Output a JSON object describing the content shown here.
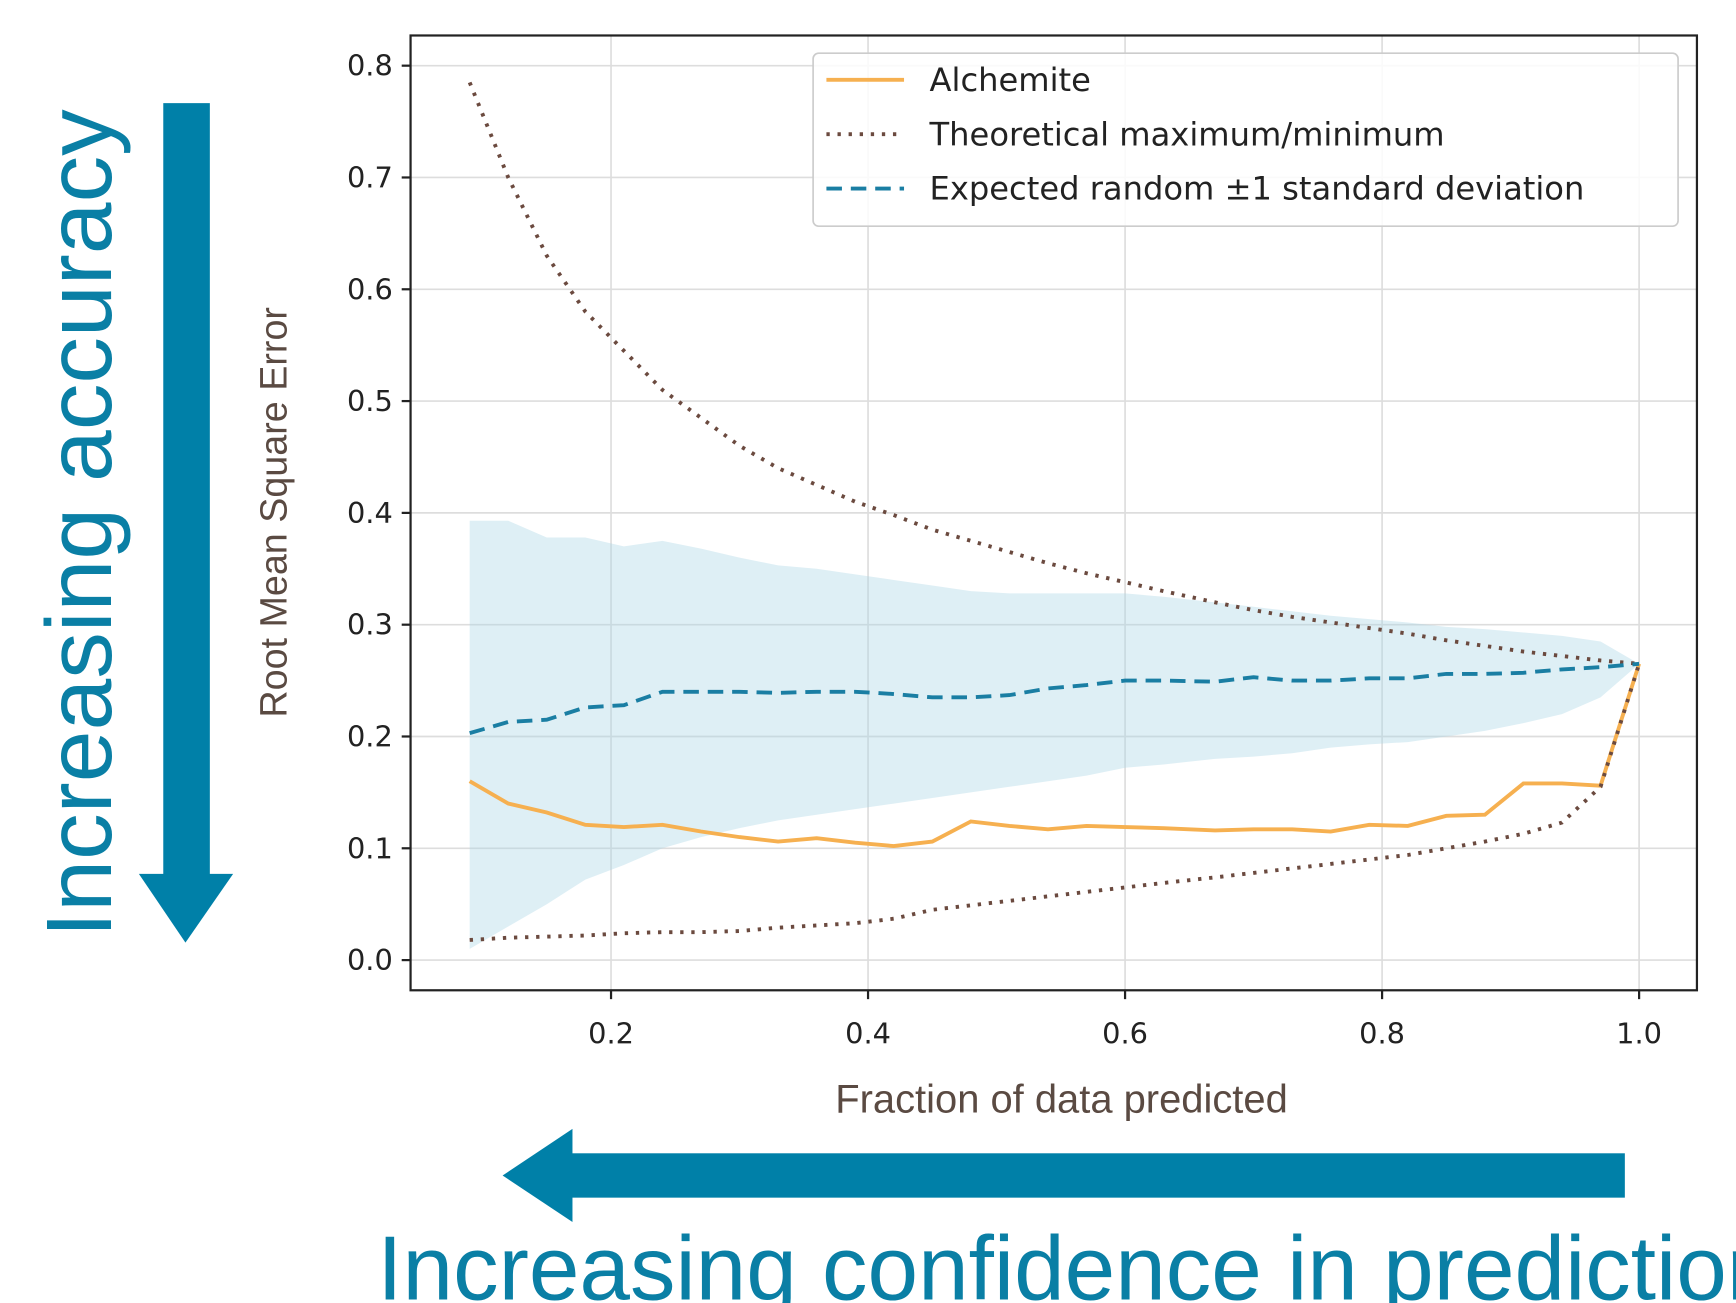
{
  "chart_data": {
    "type": "line",
    "xlabel": "Fraction of data predicted",
    "ylabel": "Root Mean Square Error",
    "annotations": [
      "Increasing accuracy",
      "Increasing confidence in prediction"
    ],
    "xlim": [
      0.044,
      1.045
    ],
    "ylim": [
      -0.027,
      0.827
    ],
    "xticks": [
      0.2,
      0.4,
      0.6,
      0.8,
      {
        "value": 1,
        "label": "1.0"
      }
    ],
    "yticks": [
      {
        "value": 0,
        "label": "0.0"
      },
      0.1,
      0.2,
      0.3,
      0.4,
      0.5,
      0.6,
      0.7,
      0.8
    ],
    "grid": true,
    "legend": "upper right",
    "x": [
      0.09,
      0.12,
      0.15,
      0.18,
      0.21,
      0.24,
      0.27,
      0.3,
      0.33,
      0.36,
      0.39,
      0.42,
      0.45,
      0.48,
      0.51,
      0.54,
      0.57,
      0.6,
      0.63,
      0.67,
      0.7,
      0.73,
      0.76,
      0.79,
      0.82,
      0.85,
      0.88,
      0.91,
      0.94,
      0.97,
      1.0
    ],
    "series": [
      {
        "name": "Alchemite",
        "color": "#f6b050",
        "linestyle": "solid",
        "values": [
          0.16,
          0.14,
          0.132,
          0.121,
          0.119,
          0.121,
          0.115,
          0.11,
          0.106,
          0.109,
          0.105,
          0.102,
          0.106,
          0.124,
          0.12,
          0.117,
          0.12,
          0.119,
          0.118,
          0.116,
          0.117,
          0.117,
          0.115,
          0.121,
          0.12,
          0.129,
          0.13,
          0.158,
          0.158,
          0.156,
          0.265
        ]
      },
      {
        "name": "Theoretical maximum/minimum",
        "color": "#6b4a3f",
        "linestyle": "dotted",
        "values": [
          0.785,
          0.7,
          0.63,
          0.58,
          0.545,
          0.51,
          0.485,
          0.46,
          0.44,
          0.425,
          0.41,
          0.398,
          0.385,
          0.375,
          0.365,
          0.355,
          0.346,
          0.338,
          0.33,
          0.32,
          0.313,
          0.307,
          0.302,
          0.297,
          0.292,
          0.286,
          0.281,
          0.276,
          0.272,
          0.268,
          0.265
        ],
        "values_min": [
          0.018,
          0.02,
          0.021,
          0.022,
          0.024,
          0.025,
          0.025,
          0.026,
          0.029,
          0.031,
          0.033,
          0.037,
          0.045,
          0.049,
          0.053,
          0.057,
          0.061,
          0.065,
          0.069,
          0.074,
          0.078,
          0.082,
          0.086,
          0.09,
          0.094,
          0.1,
          0.106,
          0.113,
          0.123,
          0.155,
          0.265
        ]
      },
      {
        "name": "Expected random ±1 standard deviation",
        "color": "#1a7ea3",
        "linestyle": "dashed",
        "band_color": "#add8e6",
        "values": [
          0.203,
          0.213,
          0.215,
          0.226,
          0.228,
          0.24,
          0.24,
          0.24,
          0.239,
          0.24,
          0.24,
          0.238,
          0.235,
          0.235,
          0.237,
          0.243,
          0.246,
          0.25,
          0.25,
          0.249,
          0.253,
          0.25,
          0.25,
          0.252,
          0.252,
          0.256,
          0.256,
          0.257,
          0.26,
          0.262,
          0.265
        ],
        "upper": [
          0.393,
          0.393,
          0.378,
          0.378,
          0.37,
          0.375,
          0.368,
          0.36,
          0.353,
          0.35,
          0.345,
          0.34,
          0.335,
          0.33,
          0.328,
          0.328,
          0.328,
          0.328,
          0.325,
          0.32,
          0.316,
          0.312,
          0.308,
          0.305,
          0.302,
          0.298,
          0.296,
          0.293,
          0.29,
          0.285,
          0.265
        ],
        "lower": [
          0.01,
          0.03,
          0.05,
          0.072,
          0.085,
          0.1,
          0.11,
          0.118,
          0.125,
          0.13,
          0.135,
          0.14,
          0.145,
          0.15,
          0.155,
          0.16,
          0.165,
          0.172,
          0.175,
          0.18,
          0.182,
          0.185,
          0.19,
          0.193,
          0.195,
          0.2,
          0.205,
          0.212,
          0.22,
          0.235,
          0.265
        ]
      }
    ]
  }
}
